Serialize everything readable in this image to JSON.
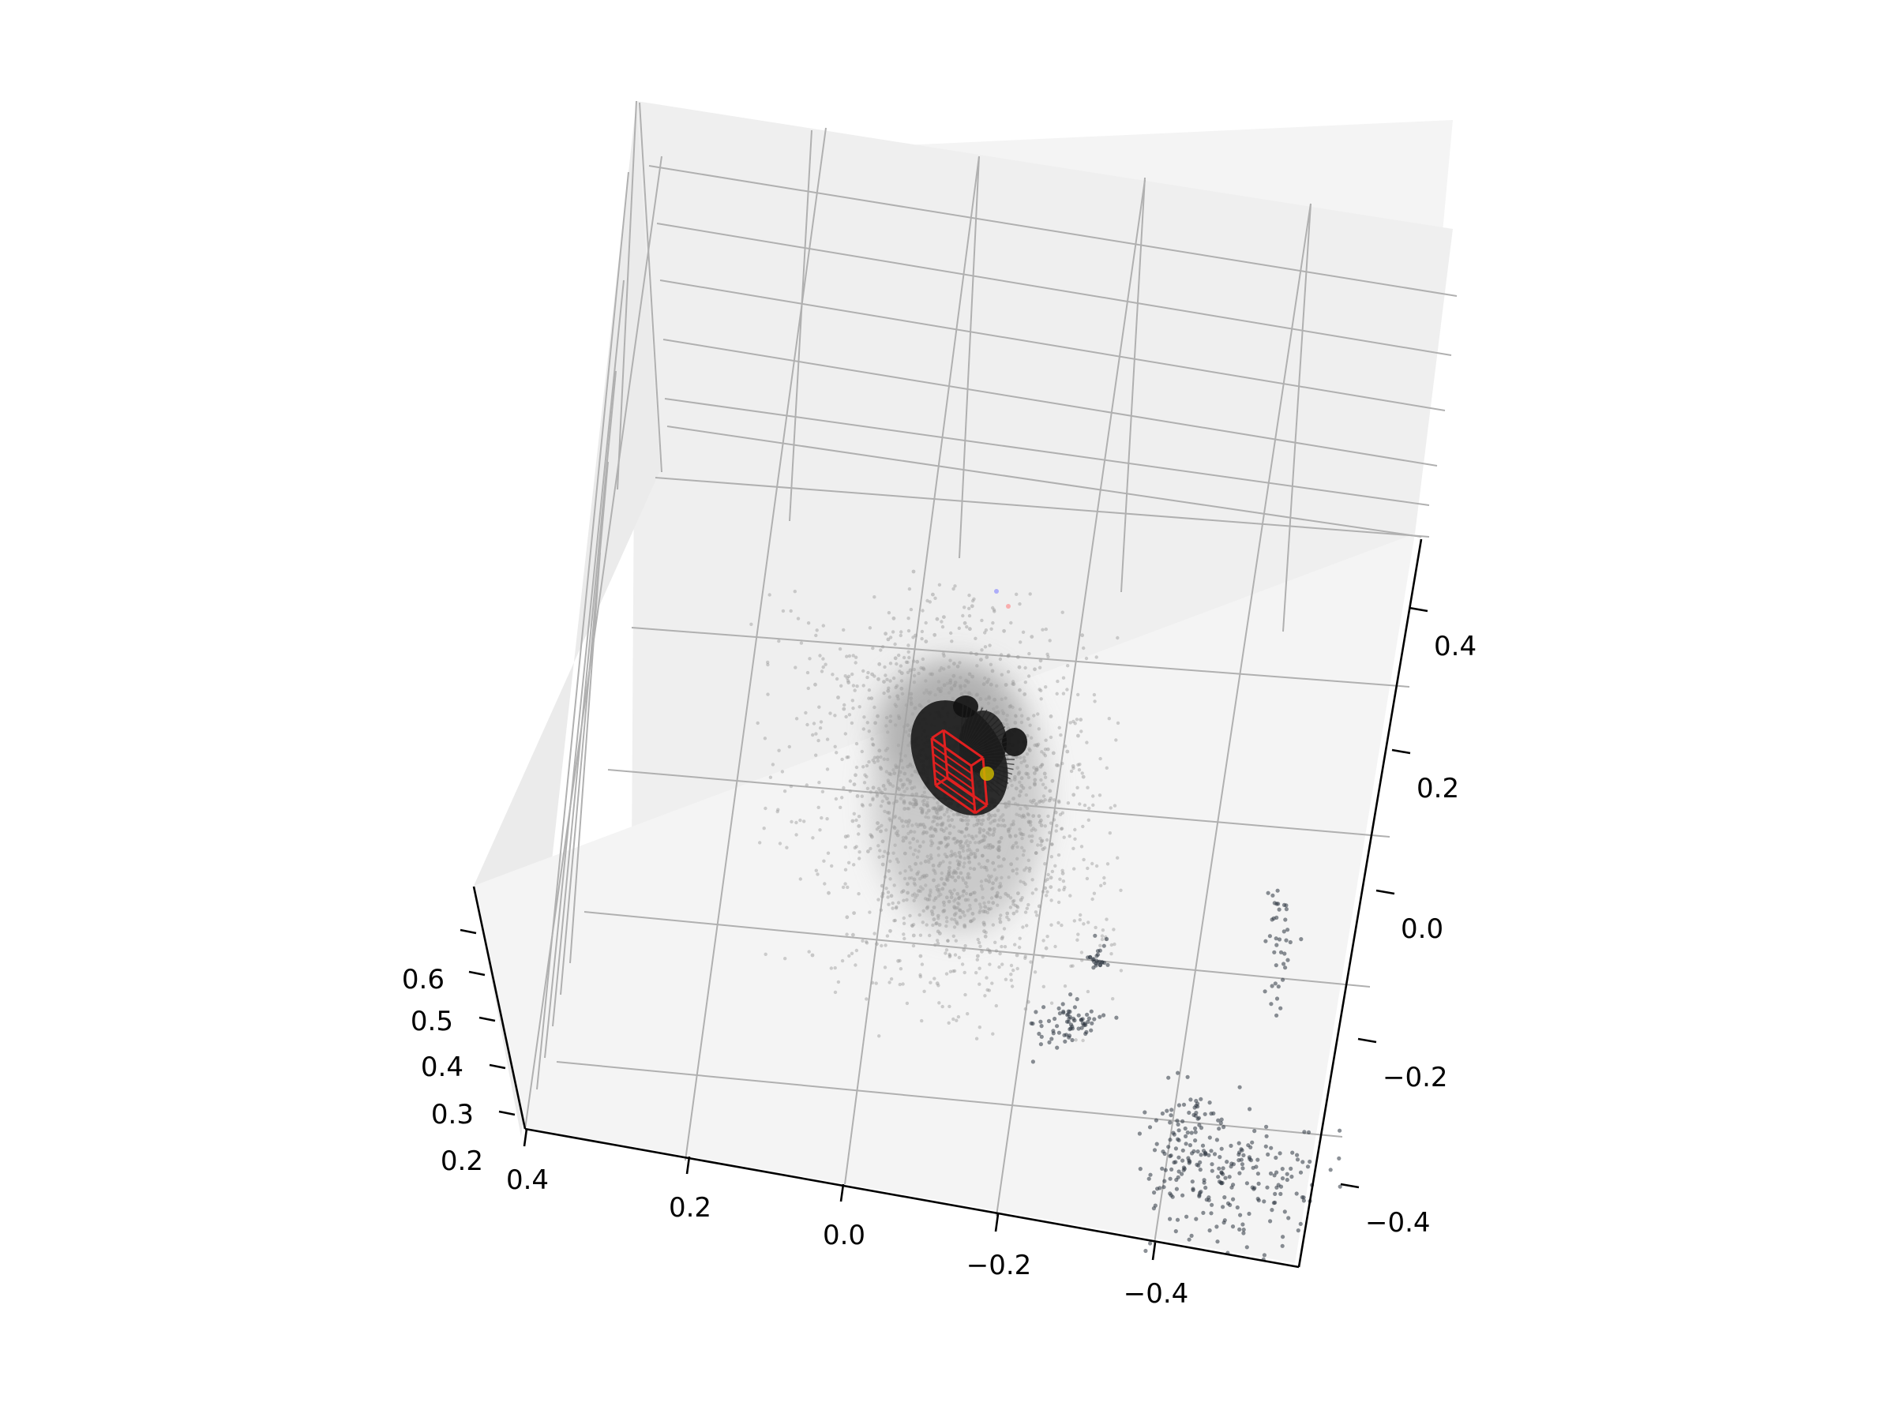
{
  "chart_data": {
    "type": "scatter",
    "projection": "3d",
    "title": "",
    "xlabel": "",
    "ylabel": "",
    "zlabel": "",
    "grid": true,
    "legend": "none",
    "axes": {
      "x": {
        "ticks": [
          0.4,
          0.2,
          0.0,
          -0.2,
          -0.4
        ],
        "tick_labels": [
          "0.4",
          "0.2",
          "0.0",
          "−0.2",
          "−0.4"
        ],
        "lim": [
          0.42,
          -0.58
        ]
      },
      "y": {
        "ticks": [
          0.4,
          0.2,
          0.0,
          -0.2,
          -0.4
        ],
        "tick_labels": [
          "0.4",
          "0.2",
          "0.0",
          "−0.2",
          "−0.4"
        ],
        "lim": [
          -0.5,
          0.5
        ]
      },
      "z": {
        "ticks": [
          0.2,
          0.3,
          0.4,
          0.5,
          0.6
        ],
        "tick_labels": [
          "0.2",
          "0.3",
          "0.4",
          "0.5",
          "0.6"
        ],
        "lim": [
          0.17,
          0.68
        ]
      }
    },
    "series": [
      {
        "kind": "gray point cloud (diffuse halo)",
        "color": "#9a9a9a",
        "center": [
          0.0,
          0.1,
          0.2
        ],
        "spread": [
          0.13,
          0.18
        ]
      },
      {
        "kind": "dense gray core",
        "color": "#a3a3a3",
        "center": [
          -0.03,
          0.12,
          0.2
        ]
      },
      {
        "kind": "black object with radial lines",
        "color": "#111111",
        "center": [
          -0.07,
          0.22,
          0.3
        ]
      },
      {
        "kind": "red wireframe box",
        "color": "#e02020",
        "center": [
          -0.08,
          0.22,
          0.32
        ]
      },
      {
        "kind": "yellow marker",
        "color": "#c8b400",
        "center": [
          -0.1,
          0.2,
          0.32
        ]
      },
      {
        "kind": "dark blue-gray clusters",
        "color": "#2c3440",
        "center": [
          -0.38,
          -0.25,
          0.2
        ]
      }
    ],
    "colors": {
      "pane": "#f2f2f2",
      "grid": "#b0b0b0",
      "cloud": "#9a9a9a",
      "object": "#111111",
      "box": "#e02020",
      "marker": "#c8b400",
      "cluster": "#2c3440"
    }
  }
}
